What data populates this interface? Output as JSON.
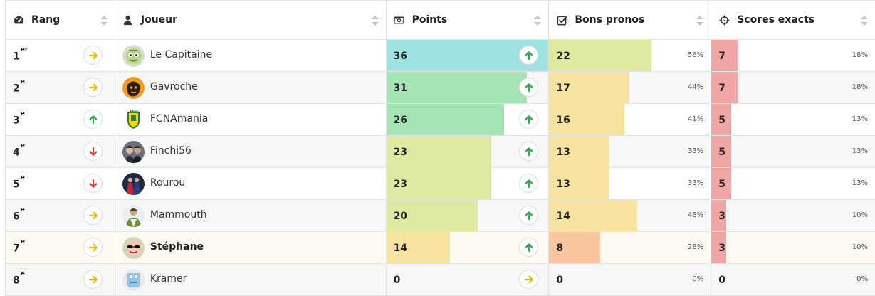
{
  "header": {
    "rank": "Rang",
    "player": "Joueur",
    "points": "Points",
    "bons": "Bons pronos",
    "scores": "Scores exacts",
    "icons": [
      "tachometer-icon",
      "user-icon",
      "money-bill-icon",
      "check-square-icon",
      "crosshairs-icon"
    ]
  },
  "colors": {
    "arrow_up": "#2eaa4f",
    "arrow_down": "#d9372c",
    "arrow_same": "#f0b400",
    "scores_bar": "#f1a5a5"
  },
  "rows": [
    {
      "rank": "1",
      "sup": "er",
      "trend": "same",
      "name": "Le Capitaine",
      "avatar": "face-green",
      "points": "36",
      "points_level": 1.0,
      "points_color": "#9ee3df",
      "points_trend": "up",
      "bons": "22",
      "bons_level": 0.56,
      "bons_color": "#dfe9a2",
      "bons_pct": "56%",
      "scores": "7",
      "scores_level": 0.18,
      "scores_pct": "18%"
    },
    {
      "rank": "2",
      "sup": "e",
      "trend": "same",
      "name": "Gavroche",
      "avatar": "face-orange",
      "points": "31",
      "points_level": 0.86,
      "points_color": "#a5e3b4",
      "points_trend": "up",
      "bons": "17",
      "bons_level": 0.44,
      "bons_color": "#f7e2a0",
      "bons_pct": "44%",
      "scores": "7",
      "scores_level": 0.18,
      "scores_pct": "18%"
    },
    {
      "rank": "3",
      "sup": "e",
      "trend": "up",
      "name": "FCNAmania",
      "avatar": "crest",
      "points": "26",
      "points_level": 0.72,
      "points_color": "#a5e3b4",
      "points_trend": "up",
      "bons": "16",
      "bons_level": 0.41,
      "bons_color": "#f7e2a0",
      "bons_pct": "41%",
      "scores": "5",
      "scores_level": 0.13,
      "scores_pct": "13%"
    },
    {
      "rank": "4",
      "sup": "e",
      "trend": "down",
      "name": "Finchi56",
      "avatar": "photo-dark",
      "points": "23",
      "points_level": 0.64,
      "points_color": "#dfe9a2",
      "points_trend": "up",
      "bons": "13",
      "bons_level": 0.33,
      "bons_color": "#f7e2a0",
      "bons_pct": "33%",
      "scores": "5",
      "scores_level": 0.13,
      "scores_pct": "13%"
    },
    {
      "rank": "5",
      "sup": "e",
      "trend": "down",
      "name": "Rourou",
      "avatar": "photo-red",
      "points": "23",
      "points_level": 0.64,
      "points_color": "#dfe9a2",
      "points_trend": "up",
      "bons": "13",
      "bons_level": 0.33,
      "bons_color": "#f7e2a0",
      "bons_pct": "33%",
      "scores": "5",
      "scores_level": 0.13,
      "scores_pct": "13%"
    },
    {
      "rank": "6",
      "sup": "e",
      "trend": "same",
      "name": "Mammouth",
      "avatar": "photo-person",
      "points": "20",
      "points_level": 0.56,
      "points_color": "#dfe9a2",
      "points_trend": "up",
      "bons": "14",
      "bons_level": 0.48,
      "bons_color": "#f7e2a0",
      "bons_pct": "48%",
      "scores": "3",
      "scores_level": 0.1,
      "scores_pct": "10%"
    },
    {
      "rank": "7",
      "sup": "e",
      "trend": "same",
      "name": "Stéphane",
      "avatar": "face-sunglasses",
      "points": "14",
      "points_level": 0.39,
      "points_color": "#f7e2a0",
      "points_trend": "up",
      "bons": "8",
      "bons_level": 0.28,
      "bons_color": "#f9c5a0",
      "bons_pct": "28%",
      "scores": "3",
      "scores_level": 0.1,
      "scores_pct": "10%",
      "me": true
    },
    {
      "rank": "8",
      "sup": "e",
      "trend": "same",
      "name": "Kramer",
      "avatar": "face-blue",
      "points": "0",
      "points_level": 0.0,
      "points_color": "#f7e2a0",
      "points_trend": "same",
      "bons": "0",
      "bons_level": 0.0,
      "bons_color": "#f9c5a0",
      "bons_pct": "0%",
      "scores": "0",
      "scores_level": 0.0,
      "scores_pct": "0%"
    }
  ]
}
